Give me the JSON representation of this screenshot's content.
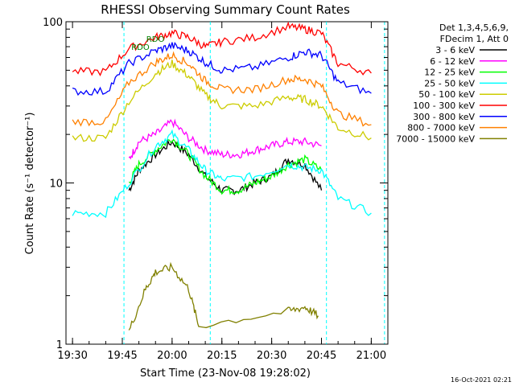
{
  "chart_data": {
    "type": "line",
    "title": "RHESSI Observing Summary Count Rates",
    "xlabel": "Start Time (23-Nov-08 19:28:02)",
    "ylabel": "Count Rate (s⁻¹ detector⁻¹)",
    "yscale": "log",
    "ylim": [
      1,
      100
    ],
    "xlim": [
      "19:28:02",
      "21:05:00"
    ],
    "x_ticks": [
      "19:30",
      "19:45",
      "20:00",
      "20:15",
      "20:30",
      "20:45",
      "21:00"
    ],
    "y_ticks": [
      "1",
      "10",
      "100"
    ],
    "grid": false,
    "legend_position": "top-right",
    "legend_header": [
      "Det 1,3,4,5,6,9,",
      "FDecim 1, Att 0"
    ],
    "footer_timestamp": "16-Oct-2021 02:21",
    "attenuator_labels": [
      {
        "text": "RDO",
        "time": "19:47:00"
      },
      {
        "text": "RDO",
        "time": "19:51:30"
      }
    ],
    "night_boundaries": [
      "19:45:30",
      "20:11:30",
      "20:46:30",
      "21:04:00"
    ],
    "series": [
      {
        "name": "3 - 6 keV",
        "color": "#000000",
        "x": [
          "19:47",
          "19:50",
          "19:55",
          "20:00",
          "20:05",
          "20:10",
          "20:15",
          "20:20",
          "20:25",
          "20:30",
          "20:35",
          "20:40",
          "20:45"
        ],
        "values": [
          9,
          12,
          15,
          18,
          15,
          11,
          9,
          9,
          10,
          11,
          14,
          13,
          9
        ]
      },
      {
        "name": "6 - 12 keV",
        "color": "#ff00ff",
        "x": [
          "19:47",
          "19:50",
          "19:55",
          "20:00",
          "20:05",
          "20:10",
          "20:15",
          "20:20",
          "20:25",
          "20:30",
          "20:35",
          "20:40",
          "20:45"
        ],
        "values": [
          14,
          18,
          20,
          24,
          19,
          16,
          15,
          15,
          16,
          17,
          18,
          18,
          17
        ]
      },
      {
        "name": "12 - 25 keV",
        "color": "#00ff00",
        "x": [
          "19:47",
          "19:50",
          "19:55",
          "20:00",
          "20:05",
          "20:10",
          "20:15",
          "20:20",
          "20:25",
          "20:30",
          "20:35",
          "20:40",
          "20:45"
        ],
        "values": [
          10,
          13,
          16,
          19,
          15,
          11,
          9,
          9,
          10,
          11,
          13,
          14,
          12
        ]
      },
      {
        "name": "25 - 50 keV",
        "color": "#00ffff",
        "x": [
          "19:30",
          "19:40",
          "19:47",
          "19:55",
          "20:00",
          "20:05",
          "20:10",
          "20:15",
          "20:25",
          "20:35",
          "20:40",
          "20:45",
          "20:50",
          "21:00"
        ],
        "values": [
          6.5,
          6.5,
          10,
          17,
          20,
          16,
          12,
          10.5,
          11,
          13,
          12.5,
          12,
          8,
          6.5
        ]
      },
      {
        "name": "50 - 100 keV",
        "color": "#cccc00",
        "x": [
          "19:30",
          "19:40",
          "19:47",
          "19:55",
          "20:00",
          "20:05",
          "20:10",
          "20:15",
          "20:25",
          "20:35",
          "20:40",
          "20:45",
          "20:50",
          "21:00"
        ],
        "values": [
          19,
          19,
          32,
          48,
          55,
          46,
          35,
          30,
          30,
          34,
          33,
          30,
          22,
          19
        ]
      },
      {
        "name": "100 - 300 keV",
        "color": "#ff0000",
        "x": [
          "19:30",
          "19:40",
          "19:47",
          "19:55",
          "20:00",
          "20:05",
          "20:10",
          "20:15",
          "20:25",
          "20:35",
          "20:40",
          "20:45",
          "20:50",
          "21:00"
        ],
        "values": [
          49,
          49,
          68,
          80,
          85,
          80,
          70,
          75,
          80,
          93,
          90,
          85,
          55,
          48
        ]
      },
      {
        "name": "300 - 800 keV",
        "color": "#0000ff",
        "x": [
          "19:30",
          "19:40",
          "19:47",
          "19:55",
          "20:00",
          "20:05",
          "20:10",
          "20:15",
          "20:25",
          "20:35",
          "20:40",
          "20:45",
          "20:50",
          "21:00"
        ],
        "values": [
          37,
          37,
          55,
          66,
          71,
          66,
          56,
          50,
          52,
          60,
          65,
          62,
          42,
          36
        ]
      },
      {
        "name": "800 - 7000 keV",
        "color": "#ff8000",
        "x": [
          "19:30",
          "19:40",
          "19:47",
          "19:55",
          "20:00",
          "20:05",
          "20:10",
          "20:15",
          "20:25",
          "20:35",
          "20:40",
          "20:45",
          "20:50",
          "21:00"
        ],
        "values": [
          24,
          24,
          42,
          56,
          62,
          55,
          43,
          38,
          38,
          44,
          44,
          40,
          27,
          23
        ]
      },
      {
        "name": "7000 - 15000 keV",
        "color": "#808000",
        "x": [
          "19:47",
          "19:52",
          "19:55",
          "20:00",
          "20:05",
          "20:08",
          "20:35",
          "20:40",
          "20:44"
        ],
        "values": [
          1.2,
          2.2,
          2.8,
          3.0,
          2.2,
          1.3,
          1.6,
          1.7,
          1.5
        ]
      }
    ]
  }
}
